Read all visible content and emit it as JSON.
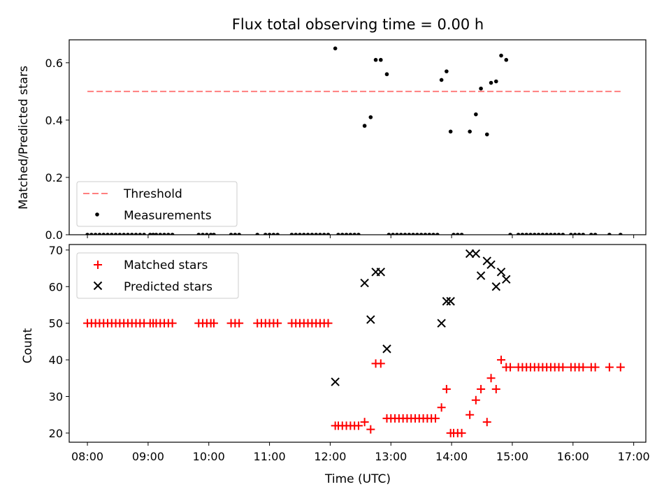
{
  "chart_data": [
    {
      "type": "scatter",
      "title": "Flux total observing time = 0.00 h",
      "ylabel": "Matched/Predicted stars",
      "xlabel": "",
      "xlim": [
        "07:42",
        "17:12"
      ],
      "ylim": [
        0,
        0.68
      ],
      "x_ticks": [
        "08:00",
        "09:00",
        "10:00",
        "11:00",
        "12:00",
        "13:00",
        "14:00",
        "15:00",
        "16:00",
        "17:00"
      ],
      "y_ticks": [
        0.0,
        0.2,
        0.4,
        0.6
      ],
      "y_tick_labels": [
        "0.0",
        "0.2",
        "0.4",
        "0.6"
      ],
      "legend_position": "lower-left",
      "threshold": {
        "name": "Threshold",
        "value": 0.5,
        "x_range": [
          "08:00",
          "16:47"
        ],
        "color": "#ff7f7f",
        "style": "dashed"
      },
      "series": [
        {
          "name": "Measurements",
          "color": "#000000",
          "points": [
            [
              "08:00",
              0
            ],
            [
              "08:04",
              0
            ],
            [
              "08:08",
              0
            ],
            [
              "08:12",
              0
            ],
            [
              "08:16",
              0
            ],
            [
              "08:20",
              0
            ],
            [
              "08:24",
              0
            ],
            [
              "08:28",
              0
            ],
            [
              "08:32",
              0
            ],
            [
              "08:36",
              0
            ],
            [
              "08:40",
              0
            ],
            [
              "08:44",
              0
            ],
            [
              "08:48",
              0
            ],
            [
              "08:52",
              0
            ],
            [
              "08:56",
              0
            ],
            [
              "09:02",
              0
            ],
            [
              "09:05",
              0
            ],
            [
              "09:08",
              0
            ],
            [
              "09:12",
              0
            ],
            [
              "09:16",
              0
            ],
            [
              "09:20",
              0
            ],
            [
              "09:24",
              0
            ],
            [
              "09:50",
              0
            ],
            [
              "09:54",
              0
            ],
            [
              "09:58",
              0
            ],
            [
              "10:02",
              0
            ],
            [
              "10:05",
              0
            ],
            [
              "10:22",
              0
            ],
            [
              "10:26",
              0
            ],
            [
              "10:30",
              0
            ],
            [
              "10:48",
              0
            ],
            [
              "10:56",
              0
            ],
            [
              "11:00",
              0
            ],
            [
              "11:04",
              0
            ],
            [
              "11:08",
              0
            ],
            [
              "11:22",
              0
            ],
            [
              "11:26",
              0
            ],
            [
              "11:30",
              0
            ],
            [
              "11:34",
              0
            ],
            [
              "11:38",
              0
            ],
            [
              "11:42",
              0
            ],
            [
              "11:46",
              0
            ],
            [
              "11:50",
              0
            ],
            [
              "11:54",
              0
            ],
            [
              "11:58",
              0
            ],
            [
              "12:05",
              0.65
            ],
            [
              "12:08",
              0
            ],
            [
              "12:12",
              0
            ],
            [
              "12:16",
              0
            ],
            [
              "12:20",
              0
            ],
            [
              "12:24",
              0
            ],
            [
              "12:28",
              0
            ],
            [
              "12:34",
              0.38
            ],
            [
              "12:40",
              0.41
            ],
            [
              "12:45",
              0.61
            ],
            [
              "12:50",
              0.61
            ],
            [
              "12:56",
              0.56
            ],
            [
              "12:58",
              0
            ],
            [
              "13:02",
              0
            ],
            [
              "13:06",
              0
            ],
            [
              "13:10",
              0
            ],
            [
              "13:14",
              0
            ],
            [
              "13:18",
              0
            ],
            [
              "13:22",
              0
            ],
            [
              "13:26",
              0
            ],
            [
              "13:30",
              0
            ],
            [
              "13:34",
              0
            ],
            [
              "13:38",
              0
            ],
            [
              "13:42",
              0
            ],
            [
              "13:46",
              0
            ],
            [
              "13:50",
              0.54
            ],
            [
              "13:55",
              0.57
            ],
            [
              "13:59",
              0.36
            ],
            [
              "14:02",
              0
            ],
            [
              "14:06",
              0
            ],
            [
              "14:10",
              0
            ],
            [
              "14:18",
              0.36
            ],
            [
              "14:24",
              0.42
            ],
            [
              "14:29",
              0.51
            ],
            [
              "14:35",
              0.35
            ],
            [
              "14:39",
              0.53
            ],
            [
              "14:44",
              0.535
            ],
            [
              "14:49",
              0.625
            ],
            [
              "14:54",
              0.61
            ],
            [
              "14:58",
              0
            ],
            [
              "15:06",
              0
            ],
            [
              "15:10",
              0
            ],
            [
              "15:14",
              0
            ],
            [
              "15:18",
              0
            ],
            [
              "15:22",
              0
            ],
            [
              "15:26",
              0
            ],
            [
              "15:30",
              0
            ],
            [
              "15:34",
              0
            ],
            [
              "15:38",
              0
            ],
            [
              "15:42",
              0
            ],
            [
              "15:46",
              0
            ],
            [
              "15:50",
              0
            ],
            [
              "15:58",
              0
            ],
            [
              "16:02",
              0
            ],
            [
              "16:06",
              0
            ],
            [
              "16:10",
              0
            ],
            [
              "16:18",
              0
            ],
            [
              "16:22",
              0
            ],
            [
              "16:36",
              0
            ],
            [
              "16:47",
              0
            ]
          ]
        }
      ]
    },
    {
      "type": "scatter",
      "title": "",
      "xlabel": "Time (UTC)",
      "ylabel": "Count",
      "xlim": [
        "07:42",
        "17:12"
      ],
      "ylim": [
        17.5,
        71.5
      ],
      "x_ticks": [
        "08:00",
        "09:00",
        "10:00",
        "11:00",
        "12:00",
        "13:00",
        "14:00",
        "15:00",
        "16:00",
        "17:00"
      ],
      "y_ticks": [
        20,
        30,
        40,
        50,
        60,
        70
      ],
      "y_tick_labels": [
        "20",
        "30",
        "40",
        "50",
        "60",
        "70"
      ],
      "legend_position": "upper-left",
      "series": [
        {
          "name": "Matched stars",
          "color": "#ff0000",
          "marker": "plus",
          "points": [
            [
              "08:00",
              50
            ],
            [
              "08:04",
              50
            ],
            [
              "08:08",
              50
            ],
            [
              "08:12",
              50
            ],
            [
              "08:16",
              50
            ],
            [
              "08:20",
              50
            ],
            [
              "08:24",
              50
            ],
            [
              "08:28",
              50
            ],
            [
              "08:32",
              50
            ],
            [
              "08:36",
              50
            ],
            [
              "08:40",
              50
            ],
            [
              "08:44",
              50
            ],
            [
              "08:48",
              50
            ],
            [
              "08:52",
              50
            ],
            [
              "08:56",
              50
            ],
            [
              "09:02",
              50
            ],
            [
              "09:05",
              50
            ],
            [
              "09:08",
              50
            ],
            [
              "09:12",
              50
            ],
            [
              "09:16",
              50
            ],
            [
              "09:20",
              50
            ],
            [
              "09:24",
              50
            ],
            [
              "09:50",
              50
            ],
            [
              "09:54",
              50
            ],
            [
              "09:58",
              50
            ],
            [
              "10:02",
              50
            ],
            [
              "10:05",
              50
            ],
            [
              "10:22",
              50
            ],
            [
              "10:26",
              50
            ],
            [
              "10:30",
              50
            ],
            [
              "10:48",
              50
            ],
            [
              "10:52",
              50
            ],
            [
              "10:56",
              50
            ],
            [
              "11:00",
              50
            ],
            [
              "11:04",
              50
            ],
            [
              "11:08",
              50
            ],
            [
              "11:22",
              50
            ],
            [
              "11:26",
              50
            ],
            [
              "11:30",
              50
            ],
            [
              "11:34",
              50
            ],
            [
              "11:38",
              50
            ],
            [
              "11:42",
              50
            ],
            [
              "11:46",
              50
            ],
            [
              "11:50",
              50
            ],
            [
              "11:54",
              50
            ],
            [
              "11:58",
              50
            ],
            [
              "12:05",
              22
            ],
            [
              "12:08",
              22
            ],
            [
              "12:12",
              22
            ],
            [
              "12:16",
              22
            ],
            [
              "12:20",
              22
            ],
            [
              "12:24",
              22
            ],
            [
              "12:28",
              22
            ],
            [
              "12:34",
              23
            ],
            [
              "12:40",
              21
            ],
            [
              "12:45",
              39
            ],
            [
              "12:50",
              39
            ],
            [
              "12:56",
              24
            ],
            [
              "13:00",
              24
            ],
            [
              "13:04",
              24
            ],
            [
              "13:08",
              24
            ],
            [
              "13:12",
              24
            ],
            [
              "13:16",
              24
            ],
            [
              "13:20",
              24
            ],
            [
              "13:24",
              24
            ],
            [
              "13:28",
              24
            ],
            [
              "13:32",
              24
            ],
            [
              "13:36",
              24
            ],
            [
              "13:40",
              24
            ],
            [
              "13:44",
              24
            ],
            [
              "13:50",
              27
            ],
            [
              "13:55",
              32
            ],
            [
              "13:59",
              20
            ],
            [
              "14:02",
              20
            ],
            [
              "14:06",
              20
            ],
            [
              "14:10",
              20
            ],
            [
              "14:18",
              25
            ],
            [
              "14:24",
              29
            ],
            [
              "14:29",
              32
            ],
            [
              "14:35",
              23
            ],
            [
              "14:39",
              35
            ],
            [
              "14:44",
              32
            ],
            [
              "14:49",
              40
            ],
            [
              "14:54",
              38
            ],
            [
              "14:58",
              38
            ],
            [
              "15:06",
              38
            ],
            [
              "15:10",
              38
            ],
            [
              "15:14",
              38
            ],
            [
              "15:18",
              38
            ],
            [
              "15:22",
              38
            ],
            [
              "15:26",
              38
            ],
            [
              "15:30",
              38
            ],
            [
              "15:34",
              38
            ],
            [
              "15:38",
              38
            ],
            [
              "15:42",
              38
            ],
            [
              "15:46",
              38
            ],
            [
              "15:50",
              38
            ],
            [
              "15:58",
              38
            ],
            [
              "16:02",
              38
            ],
            [
              "16:06",
              38
            ],
            [
              "16:10",
              38
            ],
            [
              "16:18",
              38
            ],
            [
              "16:22",
              38
            ],
            [
              "16:36",
              38
            ],
            [
              "16:47",
              38
            ]
          ]
        },
        {
          "name": "Predicted stars",
          "color": "#000000",
          "marker": "x",
          "points": [
            [
              "12:05",
              34
            ],
            [
              "12:34",
              61
            ],
            [
              "12:40",
              51
            ],
            [
              "12:45",
              64
            ],
            [
              "12:50",
              64
            ],
            [
              "12:56",
              43
            ],
            [
              "13:50",
              50
            ],
            [
              "13:55",
              56
            ],
            [
              "13:59",
              56
            ],
            [
              "14:18",
              69
            ],
            [
              "14:24",
              69
            ],
            [
              "14:29",
              63
            ],
            [
              "14:35",
              67
            ],
            [
              "14:39",
              66
            ],
            [
              "14:44",
              60
            ],
            [
              "14:49",
              64
            ],
            [
              "14:54",
              62
            ]
          ]
        }
      ]
    }
  ]
}
